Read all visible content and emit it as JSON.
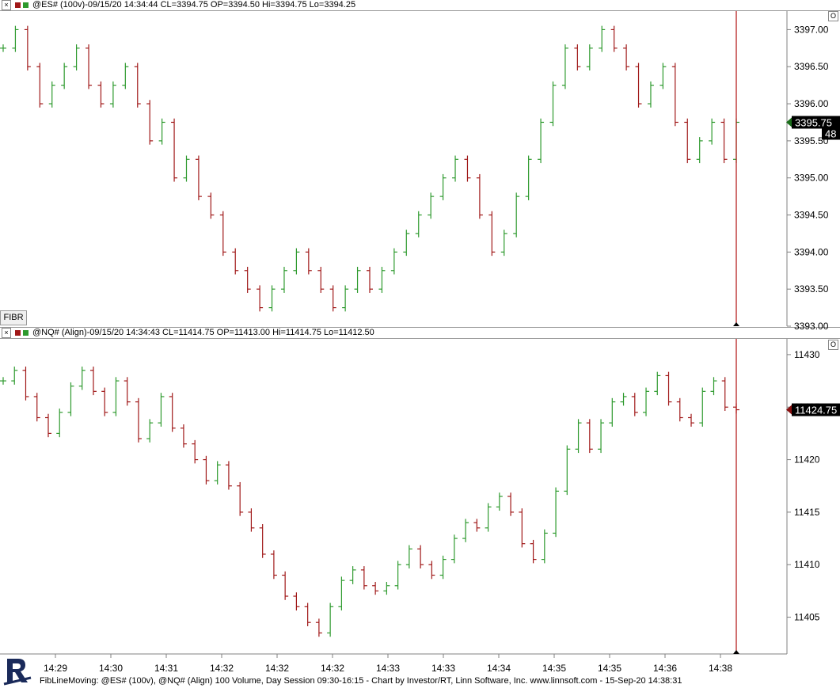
{
  "panes": [
    {
      "symbol_info": "@ES# (100v)-09/15/20 14:34:44 CL=3394.75 OP=3394.50 Hi=3394.75 Lo=3394.25",
      "y_ticks": [
        "3397.00",
        "3396.50",
        "3396.00",
        "3395.50",
        "3395.00",
        "3394.50",
        "3394.00",
        "3393.50",
        "3393.00"
      ],
      "last_price": "3395.75",
      "count_label": "48"
    },
    {
      "symbol_info": "@NQ# (Align)-09/15/20 14:34:43 CL=11414.75 OP=11413.00 Hi=11414.75 Lo=11412.50",
      "y_ticks": [
        "11430",
        "11425",
        "11420",
        "11415",
        "11410",
        "11405"
      ],
      "last_price": "11424.75"
    }
  ],
  "fibr_label": "FIBR",
  "pane_option_glyph": "O",
  "x_ticks": [
    "14:29",
    "14:30",
    "14:31",
    "14:32",
    "14:32",
    "14:32",
    "14:33",
    "14:33",
    "14:34",
    "14:35",
    "14:35",
    "14:36",
    "14:38"
  ],
  "footer": "FibLineMoving: @ES# (100v), @NQ# (Align) 100 Volume, Day Session 09:30-16:15 - Chart by Investor/RT, Linn Software, Inc. www.linnsoft.com - 15-Sep-20 14:38:31",
  "colors": {
    "up": "#2e9a2e",
    "down": "#a01818",
    "cursor": "#b01010"
  },
  "chart_data": [
    {
      "type": "ohlc",
      "title": "@ES# (100v)",
      "ylim": [
        3393.0,
        3397.25
      ],
      "y_tick_step": 0.5,
      "values_close": [
        3396.75,
        3397.0,
        3396.5,
        3396.0,
        3396.25,
        3396.5,
        3396.75,
        3396.25,
        3396.0,
        3396.25,
        3396.5,
        3396.0,
        3395.5,
        3395.75,
        3395.0,
        3395.25,
        3394.75,
        3394.5,
        3394.0,
        3393.75,
        3393.5,
        3393.25,
        3393.5,
        3393.75,
        3394.0,
        3393.75,
        3393.5,
        3393.25,
        3393.5,
        3393.75,
        3393.5,
        3393.75,
        3394.0,
        3394.25,
        3394.5,
        3394.75,
        3395.0,
        3395.25,
        3395.0,
        3394.5,
        3394.0,
        3394.25,
        3394.75,
        3395.25,
        3395.75,
        3396.25,
        3396.75,
        3396.5,
        3396.75,
        3397.0,
        3396.75,
        3396.5,
        3396.0,
        3396.25,
        3396.5,
        3395.75,
        3395.25,
        3395.5,
        3395.75,
        3395.25,
        3395.75
      ]
    },
    {
      "type": "ohlc",
      "title": "@NQ# (Align)",
      "ylim": [
        11401.5,
        11431.5
      ],
      "y_tick_step": 5,
      "values_close": [
        11427.5,
        11428.5,
        11426.0,
        11424.0,
        11422.5,
        11424.5,
        11427.0,
        11428.5,
        11426.5,
        11424.5,
        11427.5,
        11425.5,
        11422.0,
        11423.5,
        11426.0,
        11423.0,
        11421.5,
        11420.0,
        11418.0,
        11419.5,
        11417.5,
        11415.0,
        11413.5,
        11411.0,
        11409.0,
        11407.0,
        11406.0,
        11404.5,
        11403.5,
        11406.0,
        11408.5,
        11409.5,
        11408.0,
        11407.5,
        11408.0,
        11410.0,
        11411.5,
        11410.0,
        11409.0,
        11410.5,
        11412.5,
        11414.0,
        11413.5,
        11415.5,
        11416.5,
        11415.0,
        11412.0,
        11410.5,
        11413.0,
        11417.0,
        11421.0,
        11423.5,
        11421.0,
        11423.5,
        11425.5,
        11426.0,
        11424.5,
        11426.5,
        11428.0,
        11425.5,
        11424.0,
        11423.5,
        11426.5,
        11427.5,
        11425.0,
        11424.75
      ]
    }
  ]
}
